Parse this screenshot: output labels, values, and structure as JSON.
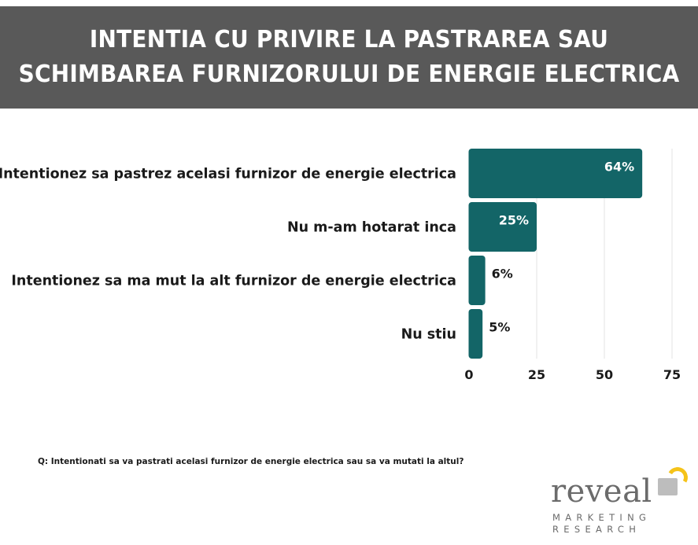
{
  "header": {
    "title_line1": "INTENTIA CU PRIVIRE LA PASTRAREA SAU",
    "title_line2": "SCHIMBAREA FURNIZORULUI DE ENERGIE ELECTRICA"
  },
  "chart_data": {
    "type": "bar",
    "orientation": "horizontal",
    "categories": [
      "Intentionez sa pastrez acelasi furnizor de energie electrica",
      "Nu m-am hotarat inca",
      "Intentionez sa ma mut la alt furnizor de energie electrica",
      "Nu stiu"
    ],
    "values": [
      64,
      25,
      6,
      5
    ],
    "value_labels": [
      "64%",
      "25%",
      "6%",
      "5%"
    ],
    "xlim": [
      0,
      75
    ],
    "xticks": [
      0,
      25,
      50,
      75
    ],
    "grid": "vertical",
    "bar_color": "#136567",
    "title": "",
    "xlabel": "",
    "ylabel": ""
  },
  "footer": {
    "question": "Q: Intentionati sa va pastrati acelasi furnizor de energie electrica sau sa va mutati la altul?"
  },
  "logo": {
    "word": "reveal",
    "line1": "MARKETING",
    "line2": "RESEARCH",
    "accent_color": "#f5c319"
  }
}
